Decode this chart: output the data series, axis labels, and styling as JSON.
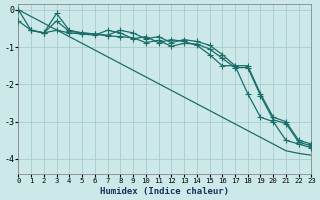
{
  "bg_color": "#cce8e8",
  "grid_color": "#aacccc",
  "line_color": "#1a6e6a",
  "xlabel": "Humidex (Indice chaleur)",
  "xlim": [
    0,
    23
  ],
  "ylim": [
    -4.4,
    0.15
  ],
  "yticks": [
    0,
    -1,
    -2,
    -3,
    -4
  ],
  "xticks": [
    0,
    1,
    2,
    3,
    4,
    5,
    6,
    7,
    8,
    9,
    10,
    11,
    12,
    13,
    14,
    15,
    16,
    17,
    18,
    19,
    20,
    21,
    22,
    23
  ],
  "series1_x": [
    0,
    1,
    2,
    3,
    4,
    5,
    6,
    7,
    8,
    9,
    10,
    11,
    12,
    13,
    14,
    15,
    16,
    17,
    18,
    19,
    20,
    21,
    22,
    23
  ],
  "series1_y": [
    0.0,
    -0.55,
    -0.62,
    -0.3,
    -0.58,
    -0.62,
    -0.65,
    -0.7,
    -0.72,
    -0.75,
    -0.88,
    -0.82,
    -0.98,
    -0.9,
    -0.92,
    -1.05,
    -1.3,
    -1.55,
    -1.55,
    -2.3,
    -2.95,
    -3.05,
    -3.55,
    -3.65
  ],
  "series2_x": [
    1,
    2,
    3,
    4,
    5,
    6,
    7,
    8,
    9,
    10,
    11,
    12,
    13,
    14,
    15,
    16,
    17,
    18,
    19,
    20,
    21,
    22,
    23
  ],
  "series2_y": [
    -0.55,
    -0.62,
    -0.1,
    -0.55,
    -0.62,
    -0.65,
    -0.68,
    -0.55,
    -0.62,
    -0.78,
    -0.72,
    -0.88,
    -0.8,
    -0.85,
    -0.95,
    -1.2,
    -1.5,
    -1.5,
    -2.25,
    -2.88,
    -3.0,
    -3.5,
    -3.6
  ],
  "series3_x": [
    0,
    1,
    2,
    3,
    4,
    5,
    6,
    7,
    8,
    9,
    10,
    11,
    12,
    13,
    14,
    15,
    16,
    17,
    18,
    19,
    20,
    21,
    22,
    23
  ],
  "series3_y": [
    -0.3,
    -0.55,
    -0.62,
    -0.55,
    -0.62,
    -0.65,
    -0.68,
    -0.55,
    -0.62,
    -0.78,
    -0.72,
    -0.88,
    -0.8,
    -0.85,
    -0.95,
    -1.2,
    -1.5,
    -1.5,
    -2.25,
    -2.88,
    -3.0,
    -3.5,
    -3.6,
    -3.7
  ],
  "series4_x": [
    0,
    1,
    2,
    3,
    4,
    5,
    6,
    7,
    8,
    9,
    10,
    11,
    12,
    13,
    14,
    15,
    16,
    17,
    18,
    19,
    20,
    21,
    22,
    23
  ],
  "series4_y": [
    0.0,
    -0.18,
    -0.36,
    -0.54,
    -0.72,
    -0.9,
    -1.08,
    -1.26,
    -1.44,
    -1.62,
    -1.8,
    -1.98,
    -2.16,
    -2.34,
    -2.52,
    -2.7,
    -2.88,
    -3.06,
    -3.24,
    -3.42,
    -3.6,
    -3.78,
    -3.85,
    -3.9
  ]
}
